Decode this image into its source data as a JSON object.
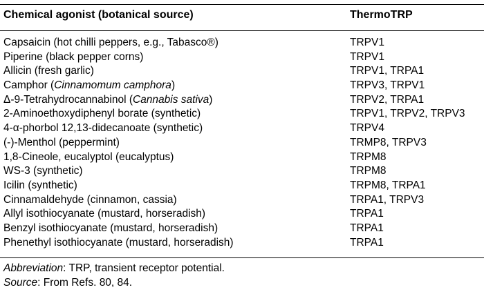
{
  "table": {
    "headers": {
      "agonist": "Chemical agonist (botanical source)",
      "channel": "ThermoTRP"
    },
    "rows": [
      {
        "pre": "Capsaicin (hot chilli peppers, e.g., Tabasco",
        "ital": "",
        "post": "®)",
        "channel": "TRPV1"
      },
      {
        "pre": "Piperine (black pepper corns)",
        "ital": "",
        "post": "",
        "channel": "TRPV1"
      },
      {
        "pre": "Allicin (fresh garlic)",
        "ital": "",
        "post": "",
        "channel": "TRPV1, TRPA1"
      },
      {
        "pre": "Camphor (",
        "ital": "Cinnamomum camphora",
        "post": ")",
        "channel": "TRPV3, TRPV1"
      },
      {
        "pre": "Δ-9-Tetrahydrocannabinol (",
        "ital": "Cannabis sativa",
        "post": ")",
        "channel": "TRPV2, TRPA1"
      },
      {
        "pre": "2-Aminoethoxydiphenyl borate (synthetic)",
        "ital": "",
        "post": "",
        "channel": "TRPV1, TRPV2, TRPV3"
      },
      {
        "pre": "4-α-phorbol 12,13-didecanoate (synthetic)",
        "ital": "",
        "post": "",
        "channel": "TRPV4"
      },
      {
        "pre": "(-)-Menthol (peppermint)",
        "ital": "",
        "post": "",
        "channel": "TRMP8, TRPV3"
      },
      {
        "pre": "1,8-Cineole, eucalyptol (eucalyptus)",
        "ital": "",
        "post": "",
        "channel": "TRPM8"
      },
      {
        "pre": "WS-3 (synthetic)",
        "ital": "",
        "post": "",
        "channel": "TRPM8"
      },
      {
        "pre": "Icilin (synthetic)",
        "ital": "",
        "post": "",
        "channel": "TRPM8, TRPA1"
      },
      {
        "pre": "Cinnamaldehyde (cinnamon, cassia)",
        "ital": "",
        "post": "",
        "channel": "TRPA1, TRPV3"
      },
      {
        "pre": "Allyl isothiocyanate (mustard, horseradish)",
        "ital": "",
        "post": "",
        "channel": "TRPA1"
      },
      {
        "pre": "Benzyl isothiocyanate (mustard, horseradish)",
        "ital": "",
        "post": "",
        "channel": "TRPA1"
      },
      {
        "pre": "Phenethyl isothiocyanate (mustard, horseradish)",
        "ital": "",
        "post": "",
        "channel": "TRPA1"
      }
    ]
  },
  "notes": {
    "abbreviation_label": "Abbreviation",
    "abbreviation_text": ": TRP, transient receptor potential.",
    "source_label": "Source",
    "source_text": ": From Refs. 80, 84."
  }
}
